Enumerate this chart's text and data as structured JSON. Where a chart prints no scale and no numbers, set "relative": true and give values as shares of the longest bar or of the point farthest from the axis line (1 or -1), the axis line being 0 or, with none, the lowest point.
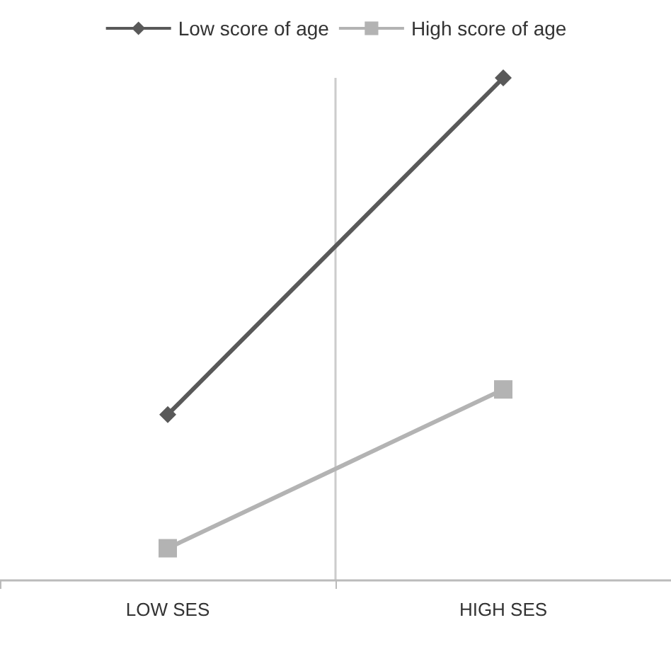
{
  "chart_data": {
    "type": "line",
    "relative": true,
    "categories": [
      "LOW SES",
      "HIGH SES"
    ],
    "series": [
      {
        "name": "Low score of age",
        "color": "#595959",
        "marker": "diamond",
        "values": [
          0.33,
          1
        ]
      },
      {
        "name": "High score of age",
        "color": "#b3b3b3",
        "marker": "square",
        "values": [
          0.064,
          0.38
        ]
      }
    ],
    "legend": "top",
    "grid": "x",
    "line_style": "solid"
  }
}
